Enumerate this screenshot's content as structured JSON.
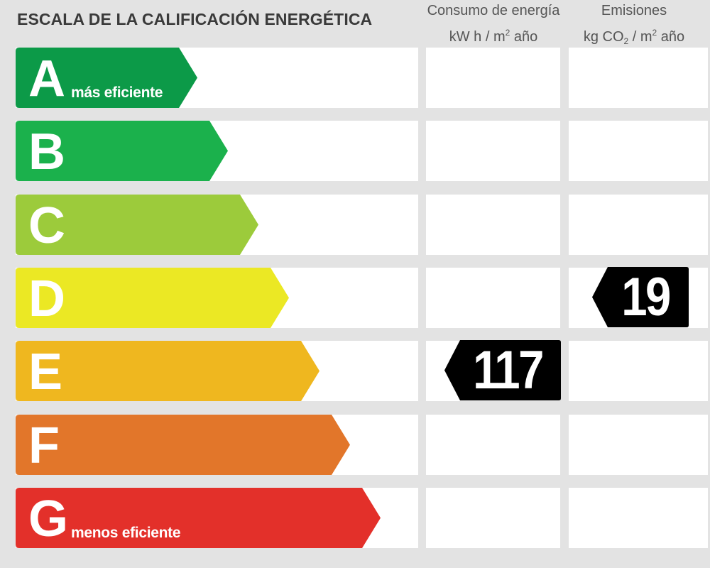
{
  "title": "ESCALA DE LA CALIFICACIÓN ENERGÉTICA",
  "columns": {
    "consumo": {
      "line1": "Consumo de energía",
      "unit_a": "kW h  / m",
      "sup": "2",
      "unit_b": " año"
    },
    "emisiones": {
      "line1": "Emisiones",
      "unit_a": "kg CO",
      "sub": "2",
      "unit_b": "  / m",
      "sup": "2",
      "unit_c": " año"
    }
  },
  "ratings": [
    {
      "letter": "A",
      "label": "más eficiente",
      "color": "#0c9a48"
    },
    {
      "letter": "B",
      "label": "",
      "color": "#1bb14c"
    },
    {
      "letter": "C",
      "label": "",
      "color": "#9ccb3b"
    },
    {
      "letter": "D",
      "label": "",
      "color": "#ebe824"
    },
    {
      "letter": "E",
      "label": "",
      "color": "#efb71f"
    },
    {
      "letter": "F",
      "label": "",
      "color": "#e2762a"
    },
    {
      "letter": "G",
      "label": "menos eficiente",
      "color": "#e3302a"
    }
  ],
  "consumo_value": {
    "value": "117",
    "rating": "E"
  },
  "emisiones_value": {
    "value": "19",
    "rating": "D"
  }
}
